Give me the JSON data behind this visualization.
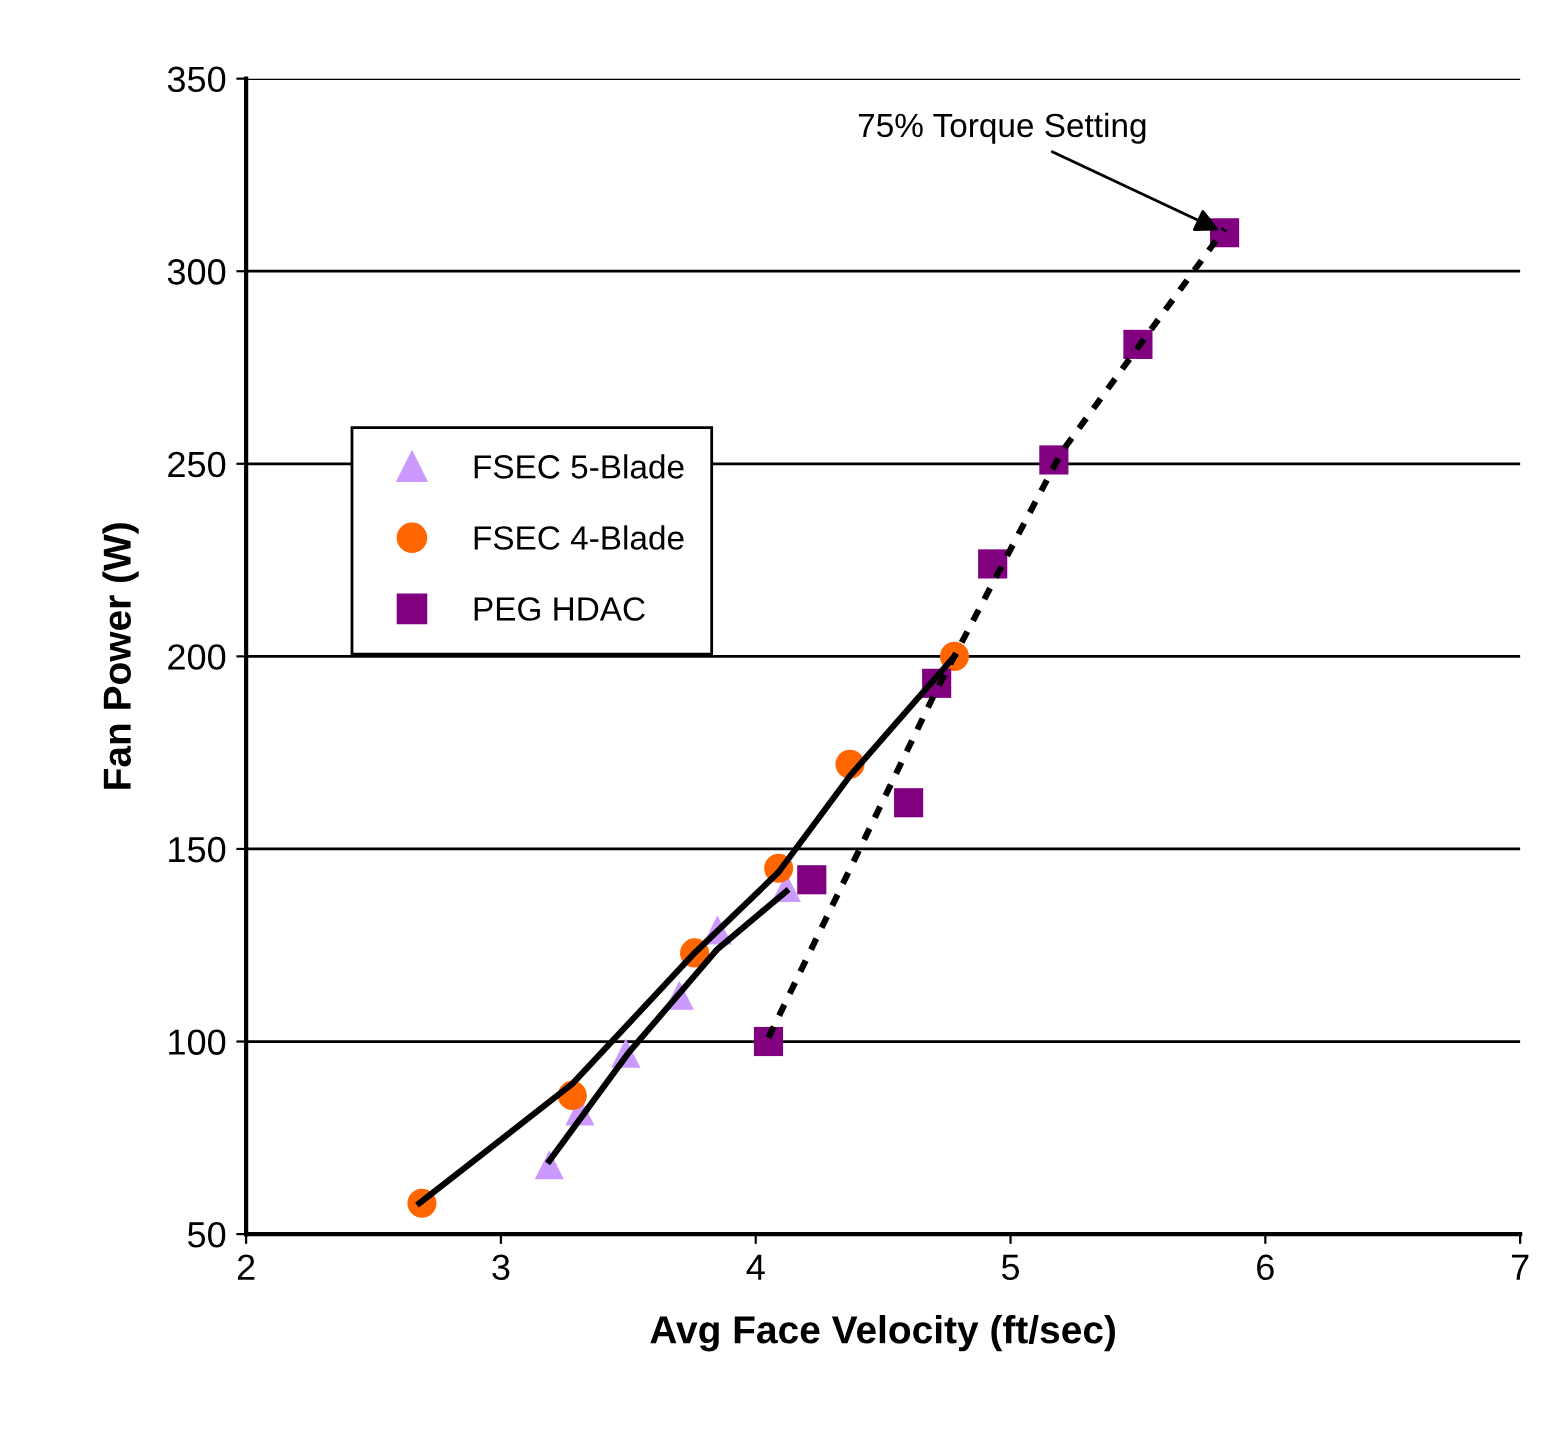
{
  "chart_data": {
    "type": "scatter",
    "xlabel": "Avg Face Velocity (ft/sec)",
    "ylabel": "Fan Power (W)",
    "xlim": [
      2,
      7
    ],
    "xticks": [
      2,
      3,
      4,
      5,
      6,
      7
    ],
    "ylim": [
      50,
      350
    ],
    "yticks": [
      50,
      100,
      150,
      200,
      250,
      300,
      350
    ],
    "grid": "y",
    "legend": "left",
    "series": [
      {
        "name": "FSEC 5-Blade",
        "color": "#cc99ff",
        "marker": "triangle",
        "x": [
          3.19,
          3.31,
          3.49,
          3.7,
          3.85,
          4.12
        ],
        "values": [
          68,
          82,
          97,
          112,
          129,
          140
        ]
      },
      {
        "name": "FSEC 4-Blade",
        "color": "#ff6600",
        "marker": "circle",
        "x": [
          2.69,
          3.28,
          3.76,
          4.09,
          4.37,
          4.78
        ],
        "values": [
          58,
          86,
          123,
          145,
          172,
          200
        ]
      },
      {
        "name": "PEG HDAC",
        "color": "#800080",
        "marker": "square",
        "x": [
          4.05,
          4.22,
          4.6,
          4.71,
          4.93,
          5.17,
          5.5,
          5.84
        ],
        "values": [
          100,
          142,
          162,
          193,
          224,
          251,
          281,
          310
        ]
      },
      {
        "type": "line",
        "color": "#000000",
        "line_style": "solid",
        "x": [
          3.19,
          3.5,
          3.85,
          4.12
        ],
        "values": [
          69,
          97,
          124,
          139
        ]
      },
      {
        "type": "line",
        "color": "#000000",
        "line_style": "solid",
        "x": [
          2.68,
          3.28,
          3.76,
          4.09,
          4.37,
          4.78
        ],
        "values": [
          58,
          89,
          123,
          144,
          169,
          200
        ]
      },
      {
        "type": "line",
        "color": "#000000",
        "line_style": "dotted",
        "x": [
          4.05,
          4.7,
          5.2,
          5.84
        ],
        "values": [
          101,
          190,
          253,
          311
        ]
      }
    ],
    "annotations": [
      {
        "text": "75% Torque Setting",
        "x": 5.84,
        "y": 310
      }
    ]
  }
}
